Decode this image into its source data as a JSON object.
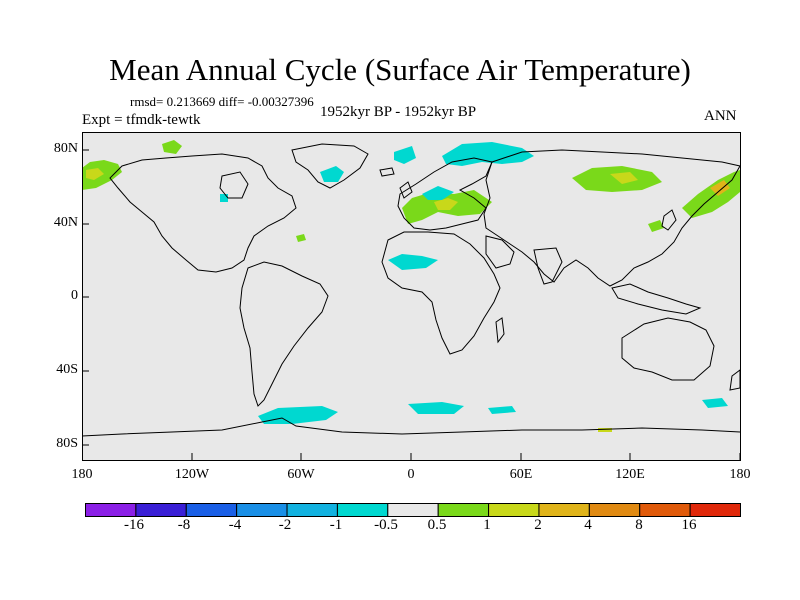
{
  "title": "Mean Annual Cycle (Surface Air Temperature)",
  "stats": "rmsd= 0.213669 diff= -0.00327396",
  "period": "1952kyr BP - 1952kyr BP",
  "experiment": "Expt = tfmdk-tewtk",
  "season": "ANN",
  "map": {
    "background_color": "#e8e8e8",
    "lat_labels": [
      "80N",
      "40N",
      "0",
      "40S",
      "80S"
    ],
    "lon_labels": [
      "180",
      "120W",
      "60W",
      "0",
      "60E",
      "120E",
      "180"
    ]
  },
  "colorbar": {
    "colors": [
      "#8b1fe6",
      "#3a1fd6",
      "#1a5fe6",
      "#1a8fe6",
      "#12b2e0",
      "#00d8d0",
      "#e8e8e8",
      "#7ad91a",
      "#c8d81a",
      "#e0b41a",
      "#e08a12",
      "#e05a0a",
      "#e0280a"
    ],
    "labels": [
      "-16",
      "-8",
      "-4",
      "-2",
      "-1",
      "-0.5",
      "0.5",
      "1",
      "2",
      "4",
      "8",
      "16"
    ]
  },
  "anomaly_colors": {
    "cyan": "#00d8d0",
    "green": "#7ad91a",
    "yellow": "#c8d81a",
    "orange": "#e0b41a"
  }
}
